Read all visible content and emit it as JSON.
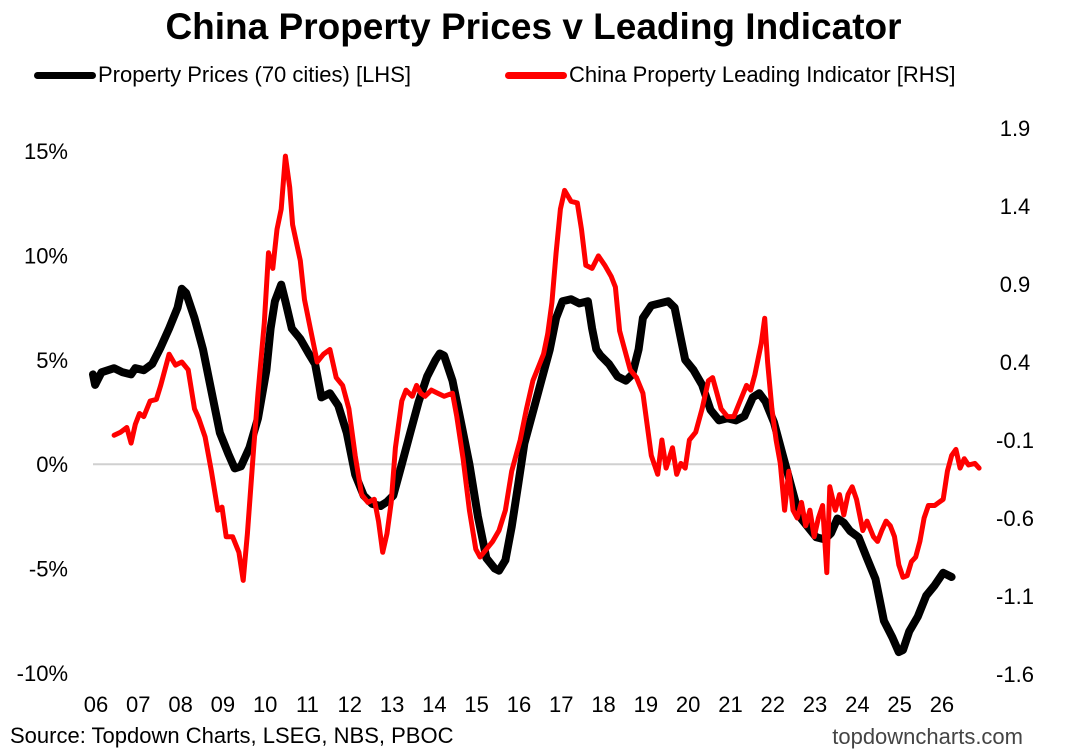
{
  "chart_data": {
    "type": "line",
    "title": "China Property Prices v Leading Indicator",
    "source": "Source: Topdown Charts, LSEG, NBS, PBOC",
    "watermark": "topdowncharts.com",
    "x_tick_labels": [
      "06",
      "07",
      "08",
      "09",
      "10",
      "11",
      "12",
      "13",
      "14",
      "15",
      "16",
      "17",
      "18",
      "19",
      "20",
      "21",
      "22",
      "23",
      "24",
      "25",
      "26"
    ],
    "x_range": [
      2006.0,
      2026.9
    ],
    "left_axis": {
      "min": -10,
      "max": 15,
      "step": 5,
      "tick_labels": [
        "-10%",
        "-5%",
        "0%",
        "5%",
        "10%",
        "15%"
      ]
    },
    "right_axis": {
      "min": -1.6,
      "max": 1.9,
      "step": 0.5,
      "tick_labels": [
        "-1.6",
        "-1.1",
        "-0.6",
        "-0.1",
        "0.4",
        "0.9",
        "1.4",
        "1.9"
      ]
    },
    "zero_line": true,
    "series": [
      {
        "name": "Property Prices (70 cities) [LHS]",
        "axis": "left",
        "color": "#000000",
        "points": [
          [
            2006.0,
            4.3
          ],
          [
            2006.05,
            3.8
          ],
          [
            2006.2,
            4.4
          ],
          [
            2006.5,
            4.6
          ],
          [
            2006.7,
            4.4
          ],
          [
            2006.9,
            4.3
          ],
          [
            2007.0,
            4.6
          ],
          [
            2007.2,
            4.5
          ],
          [
            2007.4,
            4.8
          ],
          [
            2007.6,
            5.6
          ],
          [
            2007.8,
            6.5
          ],
          [
            2008.0,
            7.5
          ],
          [
            2008.1,
            8.4
          ],
          [
            2008.2,
            8.2
          ],
          [
            2008.4,
            7.0
          ],
          [
            2008.6,
            5.5
          ],
          [
            2008.8,
            3.5
          ],
          [
            2009.0,
            1.5
          ],
          [
            2009.2,
            0.5
          ],
          [
            2009.35,
            -0.2
          ],
          [
            2009.5,
            -0.1
          ],
          [
            2009.7,
            0.8
          ],
          [
            2009.9,
            2.2
          ],
          [
            2010.1,
            4.5
          ],
          [
            2010.2,
            6.5
          ],
          [
            2010.3,
            7.8
          ],
          [
            2010.45,
            8.6
          ],
          [
            2010.55,
            7.8
          ],
          [
            2010.7,
            6.5
          ],
          [
            2010.9,
            6.0
          ],
          [
            2011.1,
            5.3
          ],
          [
            2011.25,
            4.8
          ],
          [
            2011.4,
            3.2
          ],
          [
            2011.6,
            3.4
          ],
          [
            2011.8,
            2.8
          ],
          [
            2012.0,
            1.5
          ],
          [
            2012.2,
            -0.5
          ],
          [
            2012.4,
            -1.5
          ],
          [
            2012.6,
            -1.9
          ],
          [
            2012.8,
            -2.0
          ],
          [
            2012.95,
            -1.8
          ],
          [
            2013.1,
            -1.5
          ],
          [
            2013.3,
            0.0
          ],
          [
            2013.5,
            1.5
          ],
          [
            2013.7,
            3.0
          ],
          [
            2013.9,
            4.2
          ],
          [
            2014.1,
            5.0
          ],
          [
            2014.2,
            5.3
          ],
          [
            2014.3,
            5.2
          ],
          [
            2014.5,
            4.0
          ],
          [
            2014.7,
            2.0
          ],
          [
            2014.9,
            0.0
          ],
          [
            2015.1,
            -2.5
          ],
          [
            2015.3,
            -4.5
          ],
          [
            2015.5,
            -5.0
          ],
          [
            2015.6,
            -5.1
          ],
          [
            2015.75,
            -4.6
          ],
          [
            2015.9,
            -3.0
          ],
          [
            2016.05,
            -1.0
          ],
          [
            2016.2,
            1.0
          ],
          [
            2016.4,
            2.5
          ],
          [
            2016.6,
            4.0
          ],
          [
            2016.8,
            5.5
          ],
          [
            2016.95,
            7.0
          ],
          [
            2017.1,
            7.8
          ],
          [
            2017.3,
            7.9
          ],
          [
            2017.5,
            7.7
          ],
          [
            2017.7,
            7.8
          ],
          [
            2017.8,
            6.5
          ],
          [
            2017.9,
            5.5
          ],
          [
            2018.0,
            5.2
          ],
          [
            2018.2,
            4.8
          ],
          [
            2018.4,
            4.2
          ],
          [
            2018.6,
            4.0
          ],
          [
            2018.75,
            4.3
          ],
          [
            2018.9,
            5.5
          ],
          [
            2019.0,
            7.0
          ],
          [
            2019.2,
            7.6
          ],
          [
            2019.4,
            7.7
          ],
          [
            2019.6,
            7.8
          ],
          [
            2019.75,
            7.5
          ],
          [
            2019.9,
            6.0
          ],
          [
            2020.0,
            5.0
          ],
          [
            2020.2,
            4.5
          ],
          [
            2020.4,
            3.8
          ],
          [
            2020.6,
            2.6
          ],
          [
            2020.8,
            2.1
          ],
          [
            2021.0,
            2.2
          ],
          [
            2021.2,
            2.1
          ],
          [
            2021.4,
            2.3
          ],
          [
            2021.6,
            3.2
          ],
          [
            2021.75,
            3.4
          ],
          [
            2021.9,
            3.0
          ],
          [
            2022.1,
            2.0
          ],
          [
            2022.3,
            0.5
          ],
          [
            2022.5,
            -1.0
          ],
          [
            2022.7,
            -2.5
          ],
          [
            2022.9,
            -3.0
          ],
          [
            2023.1,
            -3.5
          ],
          [
            2023.3,
            -3.6
          ],
          [
            2023.45,
            -3.3
          ],
          [
            2023.6,
            -2.6
          ],
          [
            2023.75,
            -2.8
          ],
          [
            2023.9,
            -3.2
          ],
          [
            2024.1,
            -3.5
          ],
          [
            2024.3,
            -4.5
          ],
          [
            2024.5,
            -5.5
          ],
          [
            2024.7,
            -7.5
          ],
          [
            2024.9,
            -8.3
          ],
          [
            2025.05,
            -9.0
          ],
          [
            2025.15,
            -8.9
          ],
          [
            2025.3,
            -8.0
          ],
          [
            2025.5,
            -7.3
          ],
          [
            2025.7,
            -6.3
          ],
          [
            2025.9,
            -5.8
          ],
          [
            2026.1,
            -5.2
          ],
          [
            2026.3,
            -5.4
          ]
        ]
      },
      {
        "name": "China Property Leading Indicator [RHS]",
        "axis": "right",
        "color": "#ff0000",
        "points": [
          [
            2006.5,
            -0.07
          ],
          [
            2006.65,
            -0.05
          ],
          [
            2006.8,
            -0.02
          ],
          [
            2006.9,
            -0.12
          ],
          [
            2007.0,
            0.0
          ],
          [
            2007.1,
            0.07
          ],
          [
            2007.2,
            0.05
          ],
          [
            2007.35,
            0.15
          ],
          [
            2007.5,
            0.16
          ],
          [
            2007.6,
            0.25
          ],
          [
            2007.8,
            0.45
          ],
          [
            2007.95,
            0.38
          ],
          [
            2008.1,
            0.4
          ],
          [
            2008.25,
            0.35
          ],
          [
            2008.4,
            0.1
          ],
          [
            2008.5,
            0.04
          ],
          [
            2008.65,
            -0.08
          ],
          [
            2008.8,
            -0.3
          ],
          [
            2008.95,
            -0.55
          ],
          [
            2009.05,
            -0.53
          ],
          [
            2009.15,
            -0.72
          ],
          [
            2009.3,
            -0.72
          ],
          [
            2009.45,
            -0.82
          ],
          [
            2009.55,
            -1.0
          ],
          [
            2009.65,
            -0.7
          ],
          [
            2009.8,
            -0.15
          ],
          [
            2009.9,
            0.2
          ],
          [
            2010.05,
            0.65
          ],
          [
            2010.15,
            1.1
          ],
          [
            2010.25,
            1.0
          ],
          [
            2010.35,
            1.25
          ],
          [
            2010.45,
            1.38
          ],
          [
            2010.55,
            1.72
          ],
          [
            2010.65,
            1.52
          ],
          [
            2010.72,
            1.28
          ],
          [
            2010.9,
            1.05
          ],
          [
            2011.0,
            0.8
          ],
          [
            2011.15,
            0.6
          ],
          [
            2011.3,
            0.4
          ],
          [
            2011.45,
            0.45
          ],
          [
            2011.6,
            0.48
          ],
          [
            2011.75,
            0.3
          ],
          [
            2011.9,
            0.25
          ],
          [
            2012.05,
            0.1
          ],
          [
            2012.2,
            -0.2
          ],
          [
            2012.35,
            -0.45
          ],
          [
            2012.5,
            -0.5
          ],
          [
            2012.65,
            -0.48
          ],
          [
            2012.75,
            -0.62
          ],
          [
            2012.85,
            -0.82
          ],
          [
            2012.95,
            -0.7
          ],
          [
            2013.05,
            -0.5
          ],
          [
            2013.15,
            -0.15
          ],
          [
            2013.3,
            0.15
          ],
          [
            2013.4,
            0.22
          ],
          [
            2013.55,
            0.18
          ],
          [
            2013.65,
            0.25
          ],
          [
            2013.75,
            0.2
          ],
          [
            2013.85,
            0.18
          ],
          [
            2014.0,
            0.22
          ],
          [
            2014.15,
            0.2
          ],
          [
            2014.3,
            0.18
          ],
          [
            2014.5,
            0.2
          ],
          [
            2014.6,
            0.05
          ],
          [
            2014.75,
            -0.22
          ],
          [
            2014.9,
            -0.55
          ],
          [
            2015.05,
            -0.8
          ],
          [
            2015.15,
            -0.85
          ],
          [
            2015.3,
            -0.8
          ],
          [
            2015.45,
            -0.75
          ],
          [
            2015.6,
            -0.68
          ],
          [
            2015.75,
            -0.55
          ],
          [
            2015.9,
            -0.3
          ],
          [
            2016.1,
            -0.1
          ],
          [
            2016.25,
            0.1
          ],
          [
            2016.4,
            0.28
          ],
          [
            2016.55,
            0.38
          ],
          [
            2016.65,
            0.45
          ],
          [
            2016.75,
            0.58
          ],
          [
            2016.85,
            0.78
          ],
          [
            2016.95,
            1.1
          ],
          [
            2017.05,
            1.38
          ],
          [
            2017.15,
            1.5
          ],
          [
            2017.3,
            1.43
          ],
          [
            2017.45,
            1.42
          ],
          [
            2017.55,
            1.25
          ],
          [
            2017.65,
            1.02
          ],
          [
            2017.8,
            1.0
          ],
          [
            2017.95,
            1.08
          ],
          [
            2018.1,
            1.02
          ],
          [
            2018.25,
            0.95
          ],
          [
            2018.35,
            0.88
          ],
          [
            2018.45,
            0.6
          ],
          [
            2018.55,
            0.5
          ],
          [
            2018.7,
            0.35
          ],
          [
            2018.85,
            0.3
          ],
          [
            2019.0,
            0.2
          ],
          [
            2019.1,
            0.0
          ],
          [
            2019.2,
            -0.2
          ],
          [
            2019.35,
            -0.32
          ],
          [
            2019.45,
            -0.1
          ],
          [
            2019.55,
            -0.28
          ],
          [
            2019.7,
            -0.15
          ],
          [
            2019.8,
            -0.32
          ],
          [
            2019.9,
            -0.25
          ],
          [
            2020.0,
            -0.28
          ],
          [
            2020.1,
            -0.1
          ],
          [
            2020.25,
            -0.05
          ],
          [
            2020.4,
            0.1
          ],
          [
            2020.55,
            0.28
          ],
          [
            2020.65,
            0.3
          ],
          [
            2020.75,
            0.2
          ],
          [
            2020.85,
            0.1
          ],
          [
            2021.0,
            0.05
          ],
          [
            2021.15,
            0.05
          ],
          [
            2021.3,
            0.15
          ],
          [
            2021.45,
            0.25
          ],
          [
            2021.55,
            0.22
          ],
          [
            2021.65,
            0.32
          ],
          [
            2021.8,
            0.52
          ],
          [
            2021.88,
            0.68
          ],
          [
            2021.95,
            0.4
          ],
          [
            2022.05,
            0.1
          ],
          [
            2022.15,
            -0.1
          ],
          [
            2022.25,
            -0.25
          ],
          [
            2022.35,
            -0.55
          ],
          [
            2022.45,
            -0.3
          ],
          [
            2022.55,
            -0.55
          ],
          [
            2022.65,
            -0.6
          ],
          [
            2022.75,
            -0.5
          ],
          [
            2022.85,
            -0.65
          ],
          [
            2022.95,
            -0.55
          ],
          [
            2023.05,
            -0.72
          ],
          [
            2023.15,
            -0.6
          ],
          [
            2023.25,
            -0.52
          ],
          [
            2023.35,
            -0.95
          ],
          [
            2023.42,
            -0.4
          ],
          [
            2023.55,
            -0.55
          ],
          [
            2023.65,
            -0.45
          ],
          [
            2023.75,
            -0.58
          ],
          [
            2023.85,
            -0.45
          ],
          [
            2023.95,
            -0.4
          ],
          [
            2024.05,
            -0.48
          ],
          [
            2024.2,
            -0.68
          ],
          [
            2024.3,
            -0.62
          ],
          [
            2024.45,
            -0.72
          ],
          [
            2024.55,
            -0.75
          ],
          [
            2024.65,
            -0.68
          ],
          [
            2024.75,
            -0.62
          ],
          [
            2024.85,
            -0.65
          ],
          [
            2024.95,
            -0.72
          ],
          [
            2025.05,
            -0.9
          ],
          [
            2025.15,
            -0.98
          ],
          [
            2025.25,
            -0.97
          ],
          [
            2025.35,
            -0.88
          ],
          [
            2025.45,
            -0.85
          ],
          [
            2025.55,
            -0.75
          ],
          [
            2025.65,
            -0.6
          ],
          [
            2025.75,
            -0.52
          ],
          [
            2025.9,
            -0.52
          ],
          [
            2026.0,
            -0.5
          ],
          [
            2026.1,
            -0.48
          ],
          [
            2026.2,
            -0.3
          ],
          [
            2026.3,
            -0.2
          ],
          [
            2026.4,
            -0.16
          ],
          [
            2026.5,
            -0.28
          ],
          [
            2026.6,
            -0.22
          ],
          [
            2026.7,
            -0.26
          ],
          [
            2026.85,
            -0.25
          ],
          [
            2026.95,
            -0.28
          ]
        ]
      }
    ]
  }
}
